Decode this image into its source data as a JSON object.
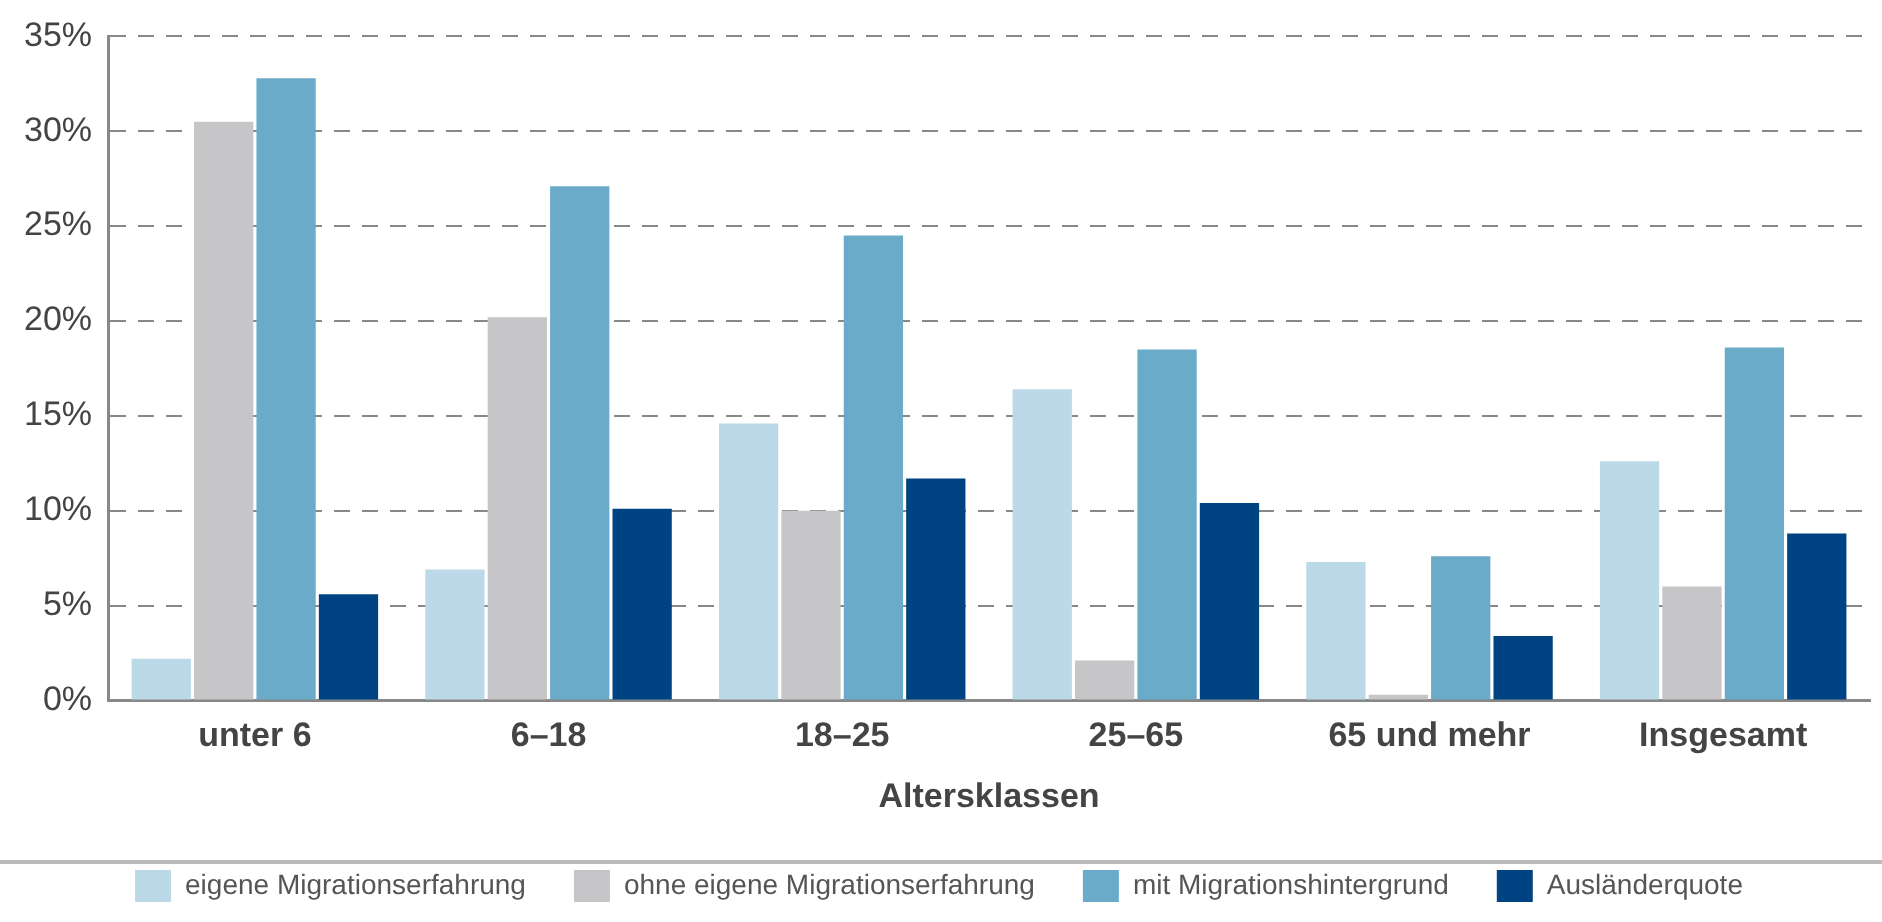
{
  "chart_data": {
    "type": "bar",
    "xlabel": "Altersklassen",
    "categories": [
      "unter 6",
      "6–18",
      "18–25",
      "25–65",
      "65 und mehr",
      "Insgesamt"
    ],
    "series": [
      {
        "name": "eigene Migrationserfahrung",
        "color": "#bcd9e8",
        "values": [
          2.2,
          6.9,
          14.6,
          16.4,
          7.3,
          12.6
        ]
      },
      {
        "name": "ohne eigene Migrationserfahrung",
        "color": "#c6c6c8",
        "values": [
          30.5,
          20.2,
          10.0,
          2.1,
          0.3,
          6.0
        ]
      },
      {
        "name": "mit Migrationshintergrund",
        "color": "#6aabc9",
        "values": [
          32.8,
          27.1,
          24.5,
          18.5,
          7.6,
          18.6
        ]
      },
      {
        "name": "Ausländerquote",
        "color": "#004383",
        "values": [
          5.6,
          10.1,
          11.7,
          10.4,
          3.4,
          8.8
        ]
      }
    ],
    "ylim": [
      0,
      35
    ],
    "yticks": [
      {
        "value": 0,
        "label": "0%"
      },
      {
        "value": 5,
        "label": "5%"
      },
      {
        "value": 10,
        "label": "10%"
      },
      {
        "value": 15,
        "label": "15%"
      },
      {
        "value": 20,
        "label": "20%"
      },
      {
        "value": 25,
        "label": "25%"
      },
      {
        "value": 30,
        "label": "30%"
      },
      {
        "value": 35,
        "label": "35%"
      }
    ],
    "grid": "y",
    "legend": "bottom"
  }
}
